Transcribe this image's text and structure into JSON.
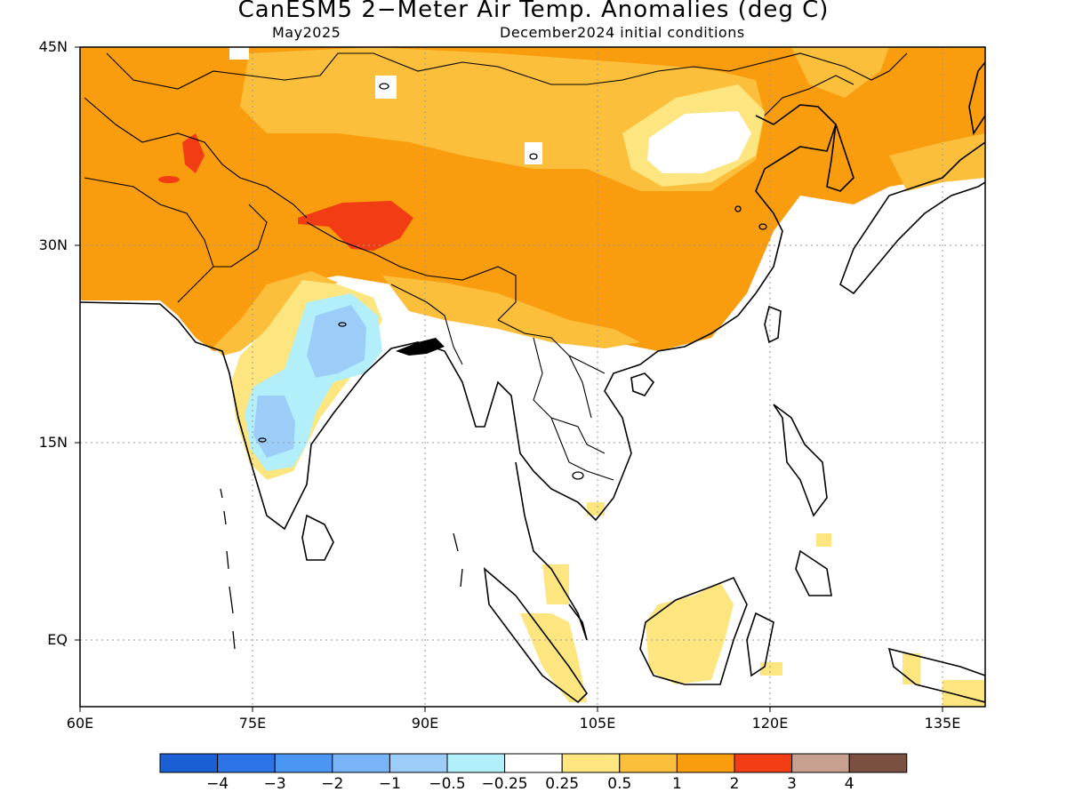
{
  "title": "CanESM5 2−Meter Air Temp. Anomalies (deg C)",
  "subtitle_left": "May2025",
  "subtitle_right": "December2024 initial conditions",
  "lat_labels": [
    "45N",
    "30N",
    "15N",
    "EQ"
  ],
  "lon_labels": [
    "60E",
    "75E",
    "90E",
    "105E",
    "120E",
    "135E"
  ],
  "colorbar": {
    "colors": [
      "#1a5fd4",
      "#2d74e8",
      "#4b96f2",
      "#78b4f7",
      "#9ccdf9",
      "#b2effa",
      "#ffffff",
      "#fde57f",
      "#fbbf3c",
      "#f99c0e",
      "#f23d14",
      "#c8a090",
      "#7a5040"
    ],
    "labels": [
      "−4",
      "−3",
      "−2",
      "−1",
      "−0.5",
      "−0.25",
      "0.25",
      "0.5",
      "1",
      "2",
      "3",
      "4"
    ]
  },
  "map_data": {
    "type": "anomaly-map",
    "variable": "2-meter air temperature anomaly",
    "units": "deg C",
    "lon_range": [
      60,
      140
    ],
    "lat_range": [
      -5,
      45
    ],
    "regions": [
      {
        "area": "Tibetan Plateau west",
        "anomaly_range": "2 to 3"
      },
      {
        "area": "Afghanistan / Pakistan",
        "anomaly_range": "1 to 2"
      },
      {
        "area": "Mongolia north",
        "anomaly_range": "0.25 to 0.5"
      },
      {
        "area": "Central India",
        "anomaly_range": "-1 to -0.25"
      },
      {
        "area": "Borneo / Sumatra",
        "anomaly_range": "0.25 to 0.5"
      }
    ]
  }
}
